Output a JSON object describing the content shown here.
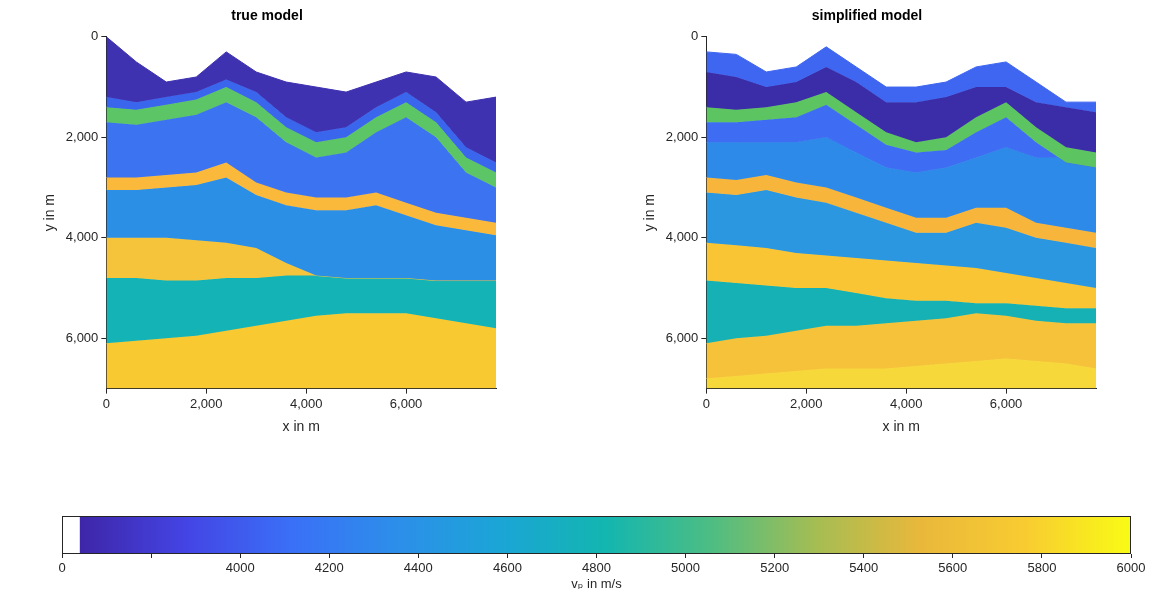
{
  "chart_data": [
    {
      "type": "area",
      "title": "true model",
      "x_label": "x in m",
      "y_label": "y in m",
      "x": [
        0,
        600,
        1200,
        1800,
        2400,
        3000,
        3600,
        4200,
        4800,
        5400,
        6000,
        6600,
        7200,
        7800
      ],
      "xlim": [
        0,
        7800
      ],
      "xticks": [
        0,
        2000,
        4000,
        6000
      ],
      "ylim": [
        0,
        7000
      ],
      "yticks": [
        0,
        2000,
        4000,
        6000
      ],
      "grid": false,
      "series": [
        {
          "color": "#3f32b0",
          "values": [
            0,
            500,
            900,
            800,
            300,
            700,
            900,
            1000,
            1100,
            900,
            700,
            800,
            1300,
            1200
          ]
        },
        {
          "color": "#3a66ee",
          "values": [
            1200,
            1300,
            1200,
            1100,
            850,
            1100,
            1600,
            1900,
            1800,
            1400,
            1100,
            1500,
            2200,
            2500
          ]
        },
        {
          "color": "#5cc565",
          "values": [
            1400,
            1450,
            1350,
            1250,
            1000,
            1300,
            1800,
            2100,
            2000,
            1600,
            1300,
            1700,
            2400,
            2700
          ]
        },
        {
          "color": "#3c73f0",
          "values": [
            1700,
            1750,
            1650,
            1550,
            1300,
            1600,
            2100,
            2400,
            2300,
            1900,
            1600,
            2000,
            2700,
            3000
          ]
        },
        {
          "color": "#fbb93c",
          "values": [
            2800,
            2800,
            2750,
            2700,
            2500,
            2900,
            3100,
            3200,
            3200,
            3100,
            3300,
            3500,
            3600,
            3700
          ]
        },
        {
          "color": "#2c8fe6",
          "values": [
            3050,
            3050,
            3000,
            2950,
            2800,
            3150,
            3350,
            3450,
            3450,
            3350,
            3550,
            3750,
            3850,
            3950
          ]
        },
        {
          "color": "#f6c43a",
          "values": [
            4000,
            4000,
            4000,
            4050,
            4100,
            4200,
            4500,
            4750,
            4800,
            4800,
            4800,
            4850,
            4850,
            4850
          ]
        },
        {
          "color": "#14b3b6",
          "values": [
            4800,
            4800,
            4850,
            4850,
            4800,
            4800,
            4750,
            4750,
            4800,
            4800,
            4800,
            4850,
            4850,
            4850
          ]
        },
        {
          "color": "#f9c932",
          "values": [
            6100,
            6050,
            6000,
            5950,
            5850,
            5750,
            5650,
            5550,
            5500,
            5500,
            5500,
            5600,
            5700,
            5800
          ]
        }
      ]
    },
    {
      "type": "area",
      "title": "simplified model",
      "x_label": "x in m",
      "y_label": "y in m",
      "x": [
        0,
        600,
        1200,
        1800,
        2400,
        3000,
        3600,
        4200,
        4800,
        5400,
        6000,
        6600,
        7200,
        7800
      ],
      "xlim": [
        0,
        7800
      ],
      "xticks": [
        0,
        2000,
        4000,
        6000
      ],
      "ylim": [
        0,
        7000
      ],
      "yticks": [
        0,
        2000,
        4000,
        6000
      ],
      "grid": false,
      "series": [
        {
          "color": "#3f66f0",
          "values": [
            300,
            350,
            700,
            600,
            200,
            600,
            1000,
            1000,
            900,
            600,
            500,
            900,
            1300,
            1300
          ]
        },
        {
          "color": "#3b2da8",
          "values": [
            700,
            800,
            1000,
            900,
            600,
            900,
            1300,
            1300,
            1200,
            1000,
            1000,
            1300,
            1400,
            1500
          ]
        },
        {
          "color": "#5cc562",
          "values": [
            1400,
            1450,
            1400,
            1300,
            1100,
            1500,
            1900,
            2100,
            2000,
            1600,
            1300,
            1800,
            2200,
            2300
          ]
        },
        {
          "color": "#3e6df3",
          "values": [
            1700,
            1700,
            1650,
            1600,
            1350,
            1750,
            2150,
            2300,
            2250,
            1900,
            1600,
            2100,
            2500,
            2600
          ]
        },
        {
          "color": "#2e8ae8",
          "values": [
            2100,
            2100,
            2100,
            2100,
            2000,
            2300,
            2600,
            2700,
            2600,
            2400,
            2200,
            2400,
            2400,
            2400
          ]
        },
        {
          "color": "#f8b53c",
          "values": [
            2800,
            2850,
            2750,
            2900,
            3000,
            3200,
            3400,
            3600,
            3600,
            3400,
            3400,
            3700,
            3800,
            3900
          ]
        },
        {
          "color": "#2a97e0",
          "values": [
            3100,
            3150,
            3050,
            3200,
            3300,
            3500,
            3700,
            3900,
            3900,
            3700,
            3800,
            4000,
            4100,
            4200
          ]
        },
        {
          "color": "#f9c535",
          "values": [
            4100,
            4150,
            4200,
            4300,
            4350,
            4400,
            4450,
            4500,
            4550,
            4600,
            4700,
            4800,
            4900,
            5000
          ]
        },
        {
          "color": "#15b1b4",
          "values": [
            4850,
            4900,
            4950,
            5000,
            5000,
            5100,
            5200,
            5250,
            5250,
            5300,
            5300,
            5350,
            5400,
            5400
          ]
        },
        {
          "color": "#f6c23a",
          "values": [
            6100,
            6000,
            5950,
            5850,
            5750,
            5750,
            5700,
            5650,
            5600,
            5500,
            5550,
            5650,
            5700,
            5700
          ]
        },
        {
          "color": "#f7d83a",
          "values": [
            6800,
            6750,
            6700,
            6650,
            6600,
            6600,
            6600,
            6550,
            6500,
            6450,
            6400,
            6450,
            6500,
            6600
          ]
        }
      ]
    },
    {
      "type": "colorbar",
      "x_label": "vₚ in m/s",
      "categories": [
        "0",
        null,
        "4000",
        "4200",
        "4400",
        "4600",
        "4800",
        "5000",
        "5200",
        "5400",
        "5600",
        "5800",
        "6000"
      ]
    }
  ]
}
